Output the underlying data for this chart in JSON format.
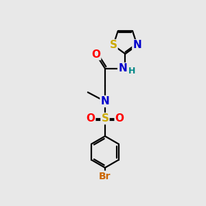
{
  "bg_color": "#e8e8e8",
  "bond_color": "#000000",
  "bond_width": 1.6,
  "atom_colors": {
    "O": "#ff0000",
    "N": "#0000cc",
    "S": "#ccaa00",
    "Br": "#cc6600",
    "H": "#008888",
    "C": "#000000"
  },
  "font_size_atom": 11,
  "font_size_small": 9,
  "font_size_br": 10
}
